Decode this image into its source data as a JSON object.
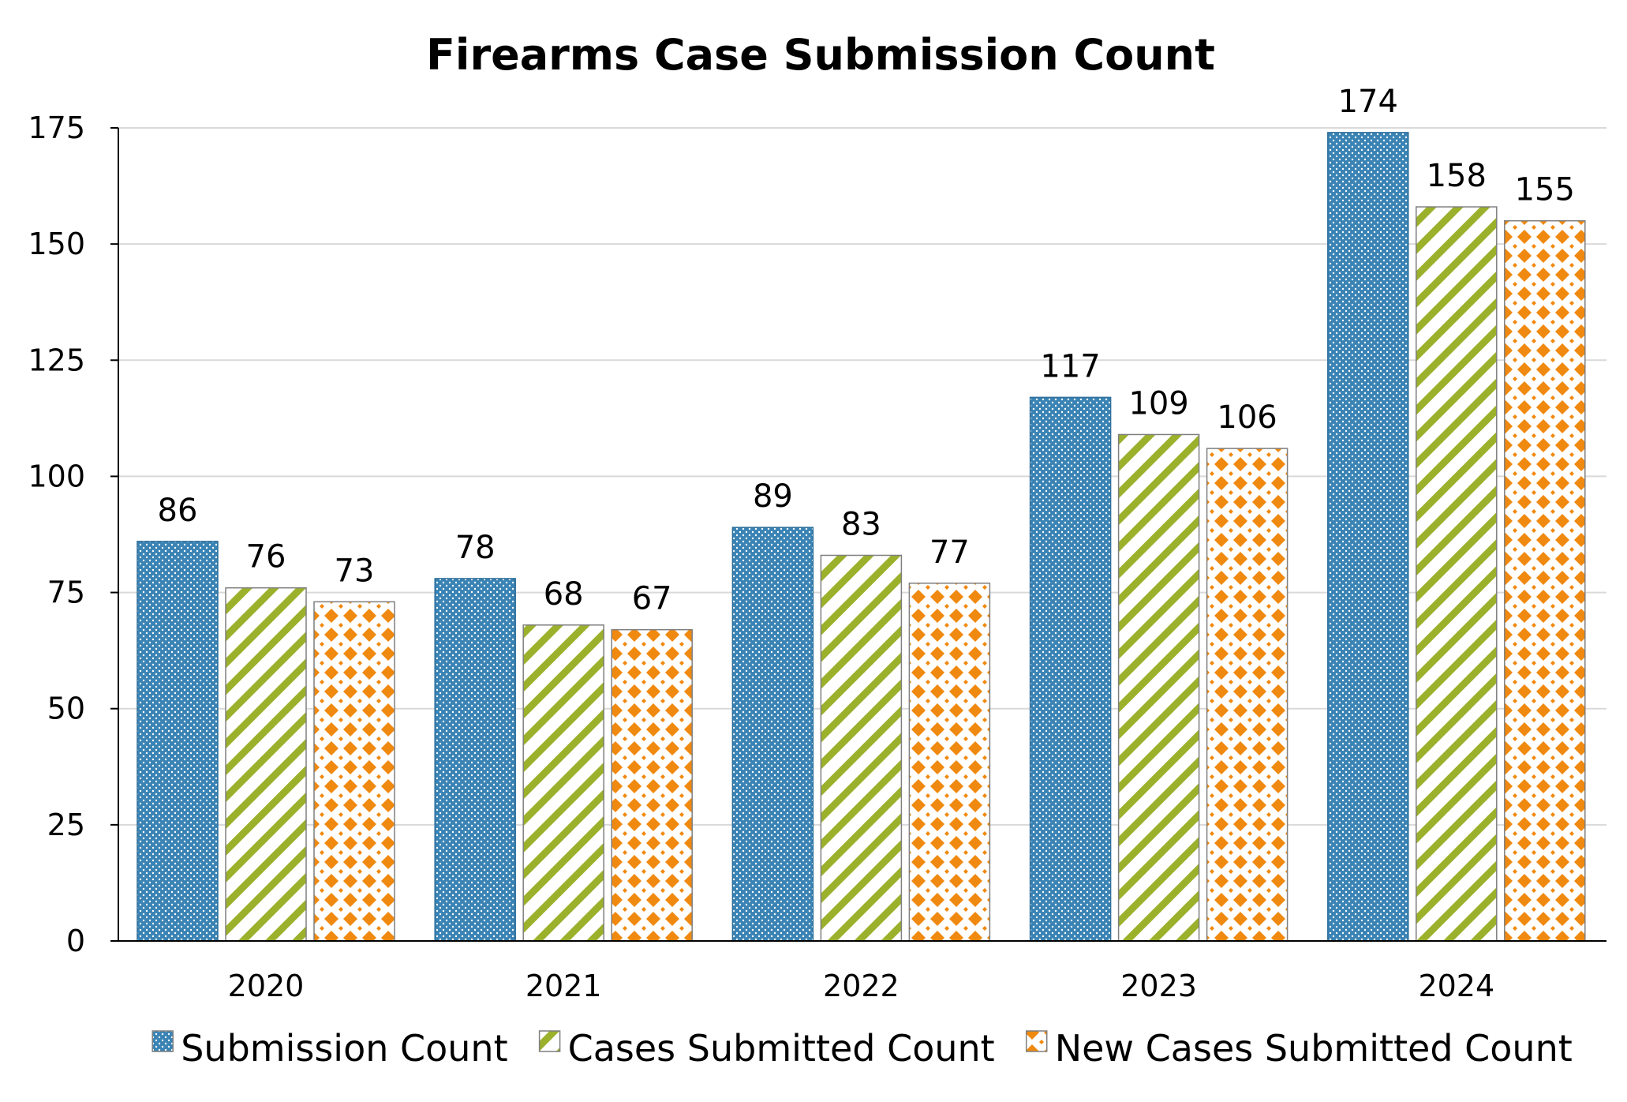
{
  "chart_data": {
    "type": "bar",
    "title": "Firearms Case Submission Count",
    "xlabel": "",
    "ylabel": "",
    "categories": [
      "2020",
      "2021",
      "2022",
      "2023",
      "2024"
    ],
    "series": [
      {
        "name": "Submission Count",
        "values": [
          86,
          78,
          89,
          117,
          174
        ],
        "color": "#3a83b4",
        "pattern": "dots"
      },
      {
        "name": "Cases Submitted Count",
        "values": [
          76,
          68,
          83,
          109,
          158
        ],
        "color": "#9bb12c",
        "pattern": "diagonal-stripes"
      },
      {
        "name": "New Cases Submitted Count",
        "values": [
          73,
          67,
          77,
          106,
          155
        ],
        "color": "#f0890f",
        "pattern": "diamonds"
      }
    ],
    "ylim": [
      0,
      175
    ],
    "yticks": [
      "0",
      "25",
      "50",
      "75",
      "100",
      "125",
      "150",
      "175"
    ],
    "grid": true,
    "data_labels": true,
    "legend": "bottom-center"
  }
}
